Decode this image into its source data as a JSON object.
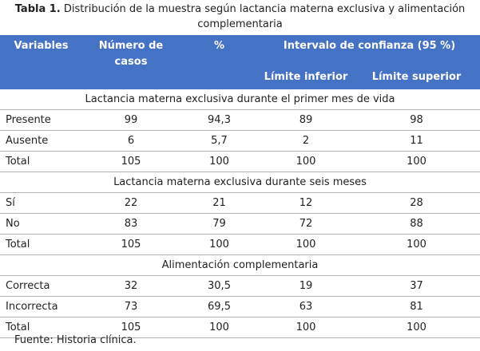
{
  "caption": {
    "bold": "Tabla 1.",
    "text": "Distribución de la muestra según lactancia materna exclusiva y alimentación complementaria"
  },
  "headers": {
    "variables": "Variables",
    "numero_casos": "Número de casos",
    "percent": "%",
    "intervalo": "Intervalo de confianza (95 %)",
    "limite_inferior": "Límite inferior",
    "limite_superior": "Límite superior"
  },
  "sections": [
    {
      "title": "Lactancia materna exclusiva durante el primer mes de vida",
      "rows": [
        {
          "label": "Presente",
          "n": "99",
          "pct": "94,3",
          "low": "89",
          "high": "98"
        },
        {
          "label": "Ausente",
          "n": "6",
          "pct": "5,7",
          "low": "2",
          "high": "11"
        },
        {
          "label": "Total",
          "n": "105",
          "pct": "100",
          "low": "100",
          "high": "100"
        }
      ]
    },
    {
      "title": "Lactancia materna exclusiva durante seis meses",
      "rows": [
        {
          "label": "Sí",
          "n": "22",
          "pct": "21",
          "low": "12",
          "high": "28"
        },
        {
          "label": "No",
          "n": "83",
          "pct": "79",
          "low": "72",
          "high": "88"
        },
        {
          "label": "Total",
          "n": "105",
          "pct": "100",
          "low": "100",
          "high": "100"
        }
      ]
    },
    {
      "title": "Alimentación complementaria",
      "rows": [
        {
          "label": "Correcta",
          "n": "32",
          "pct": "30,5",
          "low": "19",
          "high": "37"
        },
        {
          "label": "Incorrecta",
          "n": "73",
          "pct": "69,5",
          "low": "63",
          "high": "81"
        },
        {
          "label": "Total",
          "n": "105",
          "pct": "100",
          "low": "100",
          "high": "100"
        }
      ]
    }
  ],
  "source": "Fuente: Historia clínica.",
  "colors": {
    "header_bg": "#4472c4",
    "header_text": "#ffffff"
  }
}
